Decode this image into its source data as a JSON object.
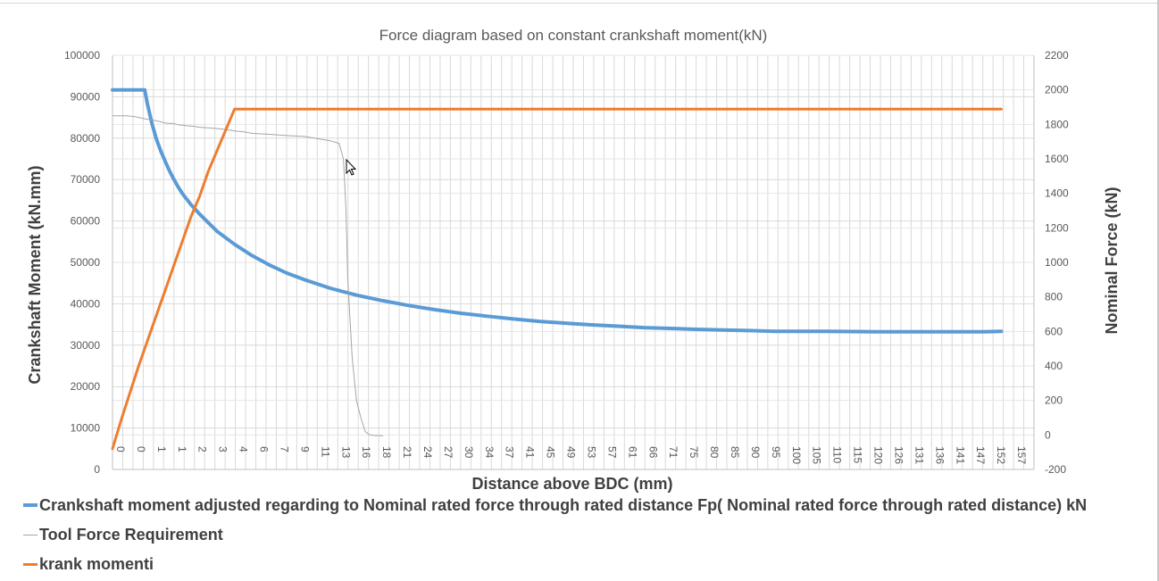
{
  "chart_data": {
    "type": "line",
    "title": "Force diagram based on constant crankshaft moment(kN)",
    "xlabel": "Distance above BDC (mm)",
    "ylabel": "Crankshaft Moment (kN.mm)",
    "y2label": "Nominal Force (kN)",
    "ylim": [
      0,
      100000
    ],
    "y2lim": [
      -200,
      2200
    ],
    "yticks": [
      0,
      10000,
      20000,
      30000,
      40000,
      50000,
      60000,
      70000,
      80000,
      90000,
      100000
    ],
    "y2ticks": [
      -200,
      0,
      200,
      400,
      600,
      800,
      1000,
      1200,
      1400,
      1600,
      1800,
      2000,
      2200
    ],
    "grid": true,
    "legend_position": "bottom",
    "categories": [
      "0",
      "0",
      "1",
      "1",
      "2",
      "3",
      "4",
      "6",
      "7",
      "9",
      "11",
      "13",
      "16",
      "18",
      "21",
      "24",
      "27",
      "30",
      "34",
      "37",
      "41",
      "45",
      "49",
      "53",
      "57",
      "61",
      "66",
      "71",
      "75",
      "80",
      "85",
      "90",
      "95",
      "100",
      "105",
      "110",
      "115",
      "120",
      "126",
      "131",
      "136",
      "141",
      "147",
      "152",
      "157"
    ],
    "series": [
      {
        "name": "Crankshaft moment adjusted regarding to Nominal rated force through rated distance Fp( Nominal rated force through rated distance) kN",
        "axis": "right",
        "color": "#5b9bd5",
        "x": [
          0,
          7,
          14,
          20,
          30,
          37,
          40,
          45,
          50,
          55,
          60,
          65,
          70,
          75,
          80,
          90,
          100,
          120,
          140,
          160,
          180,
          200,
          220,
          250,
          280,
          310,
          340,
          370,
          400,
          430,
          460,
          490,
          520,
          550,
          580,
          610,
          640,
          670,
          700,
          730,
          760,
          790,
          820,
          850,
          880,
          910,
          940,
          970,
          1000,
          1020
        ],
        "values": [
          2000,
          2000,
          2000,
          2000,
          2000,
          2000,
          1920,
          1810,
          1720,
          1650,
          1590,
          1535,
          1485,
          1440,
          1400,
          1335,
          1280,
          1180,
          1105,
          1040,
          985,
          938,
          900,
          850,
          810,
          778,
          750,
          726,
          705,
          688,
          672,
          658,
          648,
          638,
          630,
          622,
          617,
          612,
          608,
          605,
          600,
          600,
          600,
          599,
          598,
          598,
          598,
          598,
          598,
          600
        ]
      },
      {
        "name": "Tool Force Requirement",
        "axis": "right",
        "color": "#a5a5a5",
        "x": [
          0,
          5,
          10,
          15,
          20,
          25,
          30,
          37,
          45,
          50,
          55,
          60,
          62,
          64,
          66,
          68,
          70,
          72,
          75,
          80,
          85,
          90,
          95,
          100,
          110,
          120,
          130,
          140,
          150,
          160,
          180,
          200,
          220,
          250,
          260,
          265,
          266,
          268,
          270,
          275,
          280,
          285,
          290,
          295,
          300,
          305,
          310
        ],
        "values": [
          1850,
          1850,
          1850,
          1850,
          1848,
          1845,
          1840,
          1832,
          1826,
          1821,
          1815,
          1808,
          1807,
          1806,
          1806,
          1805,
          1805,
          1802,
          1798,
          1795,
          1792,
          1790,
          1787,
          1783,
          1780,
          1776,
          1770,
          1762,
          1757,
          1748,
          1742,
          1735,
          1730,
          1705,
          1690,
          1600,
          1500,
          1300,
          900,
          450,
          200,
          100,
          20,
          0,
          -3,
          -4,
          -5
        ]
      },
      {
        "name": "krank momenti",
        "axis": "left",
        "color": "#ed7d31",
        "x": [
          0,
          10,
          20,
          30,
          40,
          50,
          60,
          70,
          80,
          90,
          100,
          110,
          120,
          130,
          140,
          150,
          160,
          170,
          180,
          200,
          300,
          500,
          700,
          900,
          1020
        ],
        "values": [
          5000,
          12000,
          18500,
          25000,
          31000,
          37000,
          43000,
          49000,
          55000,
          61000,
          66000,
          72000,
          77000,
          82000,
          87000,
          87000,
          87000,
          87000,
          87000,
          87000,
          87000,
          87000,
          87000,
          87000,
          87000
        ]
      }
    ]
  }
}
